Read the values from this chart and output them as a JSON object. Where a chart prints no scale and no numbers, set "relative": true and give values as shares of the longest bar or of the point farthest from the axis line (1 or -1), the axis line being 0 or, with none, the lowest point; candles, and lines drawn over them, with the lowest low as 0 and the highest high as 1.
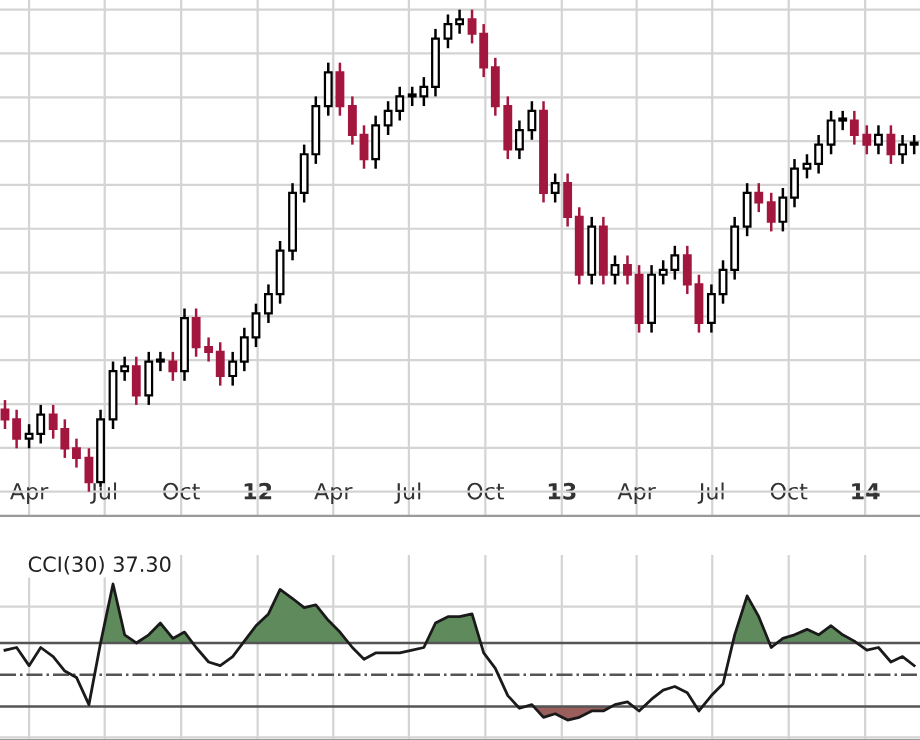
{
  "chart_data": [
    {
      "type": "candlestick",
      "relative": true,
      "tick_labels": "x",
      "grid": true,
      "x": [
        "2011-03-03",
        "2011-03-17",
        "2011-04-01",
        "2011-04-15",
        "2011-04-30",
        "2011-05-14",
        "2011-05-28",
        "2011-06-12",
        "2011-06-26",
        "2011-07-11",
        "2011-07-25",
        "2011-08-08",
        "2011-08-23",
        "2011-09-06",
        "2011-09-21",
        "2011-10-05",
        "2011-10-19",
        "2011-11-03",
        "2011-11-17",
        "2011-12-02",
        "2011-12-16",
        "2011-12-30",
        "2012-01-14",
        "2012-01-28",
        "2012-02-12",
        "2012-02-26",
        "2012-03-11",
        "2012-03-26",
        "2012-04-09",
        "2012-04-24",
        "2012-05-08",
        "2012-05-22",
        "2012-06-06",
        "2012-06-20",
        "2012-07-05",
        "2012-07-19",
        "2012-08-02",
        "2012-08-17",
        "2012-08-31",
        "2012-09-15",
        "2012-09-29",
        "2012-10-13",
        "2012-10-28",
        "2012-11-11",
        "2012-11-26",
        "2012-12-10",
        "2012-12-24",
        "2013-01-08",
        "2013-01-22",
        "2013-02-06",
        "2013-02-20",
        "2013-03-06",
        "2013-03-21",
        "2013-04-04",
        "2013-04-19",
        "2013-05-03",
        "2013-05-17",
        "2013-06-01",
        "2013-06-15",
        "2013-06-30",
        "2013-07-14",
        "2013-07-28",
        "2013-08-12",
        "2013-08-26",
        "2013-09-10",
        "2013-09-24",
        "2013-10-08",
        "2013-10-23",
        "2013-11-06",
        "2013-11-21",
        "2013-12-05",
        "2013-12-19",
        "2014-01-03",
        "2014-01-17",
        "2014-02-01",
        "2014-02-15",
        "2014-03-01"
      ],
      "ohlc": [
        [
          0.17,
          0.19,
          0.13,
          0.15
        ],
        [
          0.15,
          0.17,
          0.09,
          0.11
        ],
        [
          0.11,
          0.14,
          0.09,
          0.12
        ],
        [
          0.12,
          0.18,
          0.1,
          0.16
        ],
        [
          0.16,
          0.18,
          0.11,
          0.13
        ],
        [
          0.13,
          0.15,
          0.07,
          0.09
        ],
        [
          0.09,
          0.11,
          0.05,
          0.07
        ],
        [
          0.07,
          0.09,
          0.0,
          0.02
        ],
        [
          0.02,
          0.17,
          0.01,
          0.15
        ],
        [
          0.15,
          0.27,
          0.13,
          0.25
        ],
        [
          0.25,
          0.28,
          0.23,
          0.26
        ],
        [
          0.26,
          0.28,
          0.18,
          0.2
        ],
        [
          0.2,
          0.29,
          0.18,
          0.27
        ],
        [
          0.27,
          0.29,
          0.25,
          0.27
        ],
        [
          0.27,
          0.29,
          0.23,
          0.25
        ],
        [
          0.25,
          0.38,
          0.23,
          0.36
        ],
        [
          0.36,
          0.38,
          0.28,
          0.3
        ],
        [
          0.3,
          0.32,
          0.27,
          0.29
        ],
        [
          0.29,
          0.31,
          0.22,
          0.24
        ],
        [
          0.24,
          0.29,
          0.22,
          0.27
        ],
        [
          0.27,
          0.34,
          0.25,
          0.32
        ],
        [
          0.32,
          0.39,
          0.3,
          0.37
        ],
        [
          0.37,
          0.43,
          0.35,
          0.41
        ],
        [
          0.41,
          0.52,
          0.39,
          0.5
        ],
        [
          0.5,
          0.64,
          0.48,
          0.62
        ],
        [
          0.62,
          0.72,
          0.6,
          0.7
        ],
        [
          0.7,
          0.82,
          0.68,
          0.8
        ],
        [
          0.8,
          0.89,
          0.78,
          0.87
        ],
        [
          0.87,
          0.89,
          0.78,
          0.8
        ],
        [
          0.8,
          0.82,
          0.72,
          0.74
        ],
        [
          0.74,
          0.76,
          0.67,
          0.69
        ],
        [
          0.69,
          0.78,
          0.67,
          0.76
        ],
        [
          0.76,
          0.81,
          0.74,
          0.79
        ],
        [
          0.79,
          0.84,
          0.77,
          0.82
        ],
        [
          0.82,
          0.84,
          0.8,
          0.82
        ],
        [
          0.82,
          0.86,
          0.8,
          0.84
        ],
        [
          0.84,
          0.96,
          0.82,
          0.94
        ],
        [
          0.94,
          0.99,
          0.92,
          0.97
        ],
        [
          0.97,
          1.0,
          0.95,
          0.98
        ],
        [
          0.98,
          1.0,
          0.93,
          0.95
        ],
        [
          0.95,
          0.97,
          0.86,
          0.88
        ],
        [
          0.88,
          0.9,
          0.78,
          0.8
        ],
        [
          0.8,
          0.82,
          0.69,
          0.71
        ],
        [
          0.71,
          0.77,
          0.69,
          0.75
        ],
        [
          0.75,
          0.81,
          0.73,
          0.79
        ],
        [
          0.79,
          0.81,
          0.6,
          0.62
        ],
        [
          0.62,
          0.66,
          0.6,
          0.64
        ],
        [
          0.64,
          0.66,
          0.55,
          0.57
        ],
        [
          0.57,
          0.59,
          0.43,
          0.45
        ],
        [
          0.45,
          0.57,
          0.43,
          0.55
        ],
        [
          0.55,
          0.57,
          0.43,
          0.45
        ],
        [
          0.45,
          0.49,
          0.43,
          0.47
        ],
        [
          0.47,
          0.49,
          0.43,
          0.45
        ],
        [
          0.45,
          0.47,
          0.33,
          0.35
        ],
        [
          0.35,
          0.47,
          0.33,
          0.45
        ],
        [
          0.45,
          0.48,
          0.43,
          0.46
        ],
        [
          0.46,
          0.51,
          0.44,
          0.49
        ],
        [
          0.49,
          0.51,
          0.41,
          0.43
        ],
        [
          0.43,
          0.45,
          0.33,
          0.35
        ],
        [
          0.35,
          0.43,
          0.33,
          0.41
        ],
        [
          0.41,
          0.48,
          0.39,
          0.46
        ],
        [
          0.46,
          0.57,
          0.44,
          0.55
        ],
        [
          0.55,
          0.64,
          0.53,
          0.62
        ],
        [
          0.62,
          0.64,
          0.58,
          0.6
        ],
        [
          0.6,
          0.62,
          0.54,
          0.56
        ],
        [
          0.56,
          0.63,
          0.54,
          0.61
        ],
        [
          0.61,
          0.69,
          0.59,
          0.67
        ],
        [
          0.67,
          0.7,
          0.65,
          0.68
        ],
        [
          0.68,
          0.74,
          0.66,
          0.72
        ],
        [
          0.72,
          0.79,
          0.7,
          0.77
        ],
        [
          0.77,
          0.79,
          0.75,
          0.77
        ],
        [
          0.77,
          0.79,
          0.72,
          0.74
        ],
        [
          0.74,
          0.76,
          0.7,
          0.72
        ],
        [
          0.72,
          0.76,
          0.7,
          0.74
        ],
        [
          0.74,
          0.76,
          0.68,
          0.7
        ],
        [
          0.7,
          0.74,
          0.68,
          0.72
        ],
        [
          0.72,
          0.74,
          0.7,
          0.72
        ]
      ],
      "colors": [
        "#a3173f",
        "#a3173f",
        "#ffffff",
        "#ffffff",
        "#a3173f",
        "#a3173f",
        "#a3173f",
        "#a3173f",
        "#ffffff",
        "#ffffff",
        "#ffffff",
        "#a3173f",
        "#ffffff",
        "#ffffff",
        "#a3173f",
        "#ffffff",
        "#a3173f",
        "#a3173f",
        "#a3173f",
        "#ffffff",
        "#ffffff",
        "#ffffff",
        "#ffffff",
        "#ffffff",
        "#ffffff",
        "#ffffff",
        "#ffffff",
        "#ffffff",
        "#a3173f",
        "#a3173f",
        "#a3173f",
        "#ffffff",
        "#ffffff",
        "#ffffff",
        "#ffffff",
        "#ffffff",
        "#ffffff",
        "#ffffff",
        "#ffffff",
        "#a3173f",
        "#a3173f",
        "#a3173f",
        "#a3173f",
        "#ffffff",
        "#ffffff",
        "#a3173f",
        "#ffffff",
        "#a3173f",
        "#a3173f",
        "#ffffff",
        "#a3173f",
        "#ffffff",
        "#a3173f",
        "#a3173f",
        "#ffffff",
        "#ffffff",
        "#ffffff",
        "#a3173f",
        "#a3173f",
        "#ffffff",
        "#ffffff",
        "#ffffff",
        "#ffffff",
        "#a3173f",
        "#a3173f",
        "#ffffff",
        "#ffffff",
        "#ffffff",
        "#ffffff",
        "#ffffff",
        "#ffffff",
        "#a3173f",
        "#a3173f",
        "#ffffff",
        "#a3173f",
        "#ffffff",
        "#ffffff"
      ],
      "xlim": [
        "2011-02-25",
        "2014-03-08"
      ],
      "xticks": [
        {
          "value": "2011-04-01",
          "label": "Apr"
        },
        {
          "value": "2011-07-01",
          "label": "Jul"
        },
        {
          "value": "2011-10-01",
          "label": "Oct"
        },
        {
          "value": "2012-01-01",
          "label": "12"
        },
        {
          "value": "2012-04-01",
          "label": "Apr"
        },
        {
          "value": "2012-07-01",
          "label": "Jul"
        },
        {
          "value": "2012-10-01",
          "label": "Oct"
        },
        {
          "value": "2013-01-01",
          "label": "13"
        },
        {
          "value": "2013-04-01",
          "label": "Apr"
        },
        {
          "value": "2013-07-01",
          "label": "Jul"
        },
        {
          "value": "2013-10-01",
          "label": "Oct"
        },
        {
          "value": "2014-01-01",
          "label": "14"
        }
      ]
    },
    {
      "type": "line",
      "relative": true,
      "tick_labels": false,
      "grid": true,
      "title": "CCI(30) 37.30",
      "xlim": [
        "2011-02-25",
        "2014-03-08"
      ],
      "x": [
        "2011-03-03",
        "2011-03-17",
        "2011-04-01",
        "2011-04-15",
        "2011-04-30",
        "2011-05-14",
        "2011-05-28",
        "2011-06-12",
        "2011-06-26",
        "2011-07-11",
        "2011-07-25",
        "2011-08-08",
        "2011-08-23",
        "2011-09-06",
        "2011-09-21",
        "2011-10-05",
        "2011-10-19",
        "2011-11-03",
        "2011-11-17",
        "2011-12-02",
        "2011-12-16",
        "2011-12-30",
        "2012-01-14",
        "2012-01-28",
        "2012-02-12",
        "2012-02-26",
        "2012-03-11",
        "2012-03-26",
        "2012-04-09",
        "2012-04-24",
        "2012-05-08",
        "2012-05-22",
        "2012-06-06",
        "2012-06-20",
        "2012-07-05",
        "2012-07-19",
        "2012-08-02",
        "2012-08-17",
        "2012-08-31",
        "2012-09-15",
        "2012-09-29",
        "2012-10-13",
        "2012-10-28",
        "2012-11-11",
        "2012-11-26",
        "2012-12-10",
        "2012-12-24",
        "2013-01-08",
        "2013-01-22",
        "2013-02-06",
        "2013-02-20",
        "2013-03-06",
        "2013-03-21",
        "2013-04-04",
        "2013-04-19",
        "2013-05-03",
        "2013-05-17",
        "2013-06-01",
        "2013-06-15",
        "2013-06-30",
        "2013-07-14",
        "2013-07-28",
        "2013-08-12",
        "2013-08-26",
        "2013-09-10",
        "2013-09-24",
        "2013-10-08",
        "2013-10-23",
        "2013-11-06",
        "2013-11-21",
        "2013-12-05",
        "2013-12-19",
        "2014-01-03",
        "2014-01-17",
        "2014-02-01",
        "2014-02-15",
        "2014-03-01"
      ],
      "series": [
        {
          "color": "#1a1a1a",
          "values": [
            0.27,
            0.3,
            0.1,
            0.3,
            0.2,
            0.04,
            -0.03,
            -0.33,
            0.35,
            1.0,
            0.44,
            0.35,
            0.44,
            0.57,
            0.4,
            0.47,
            0.3,
            0.14,
            0.1,
            0.2,
            0.37,
            0.54,
            0.67,
            0.94,
            0.84,
            0.74,
            0.77,
            0.6,
            0.47,
            0.3,
            0.17,
            0.24,
            0.24,
            0.24,
            0.27,
            0.3,
            0.57,
            0.64,
            0.64,
            0.67,
            0.24,
            0.07,
            -0.23,
            -0.37,
            -0.33,
            -0.47,
            -0.43,
            -0.5,
            -0.47,
            -0.4,
            -0.4,
            -0.33,
            -0.3,
            -0.4,
            -0.27,
            -0.17,
            -0.13,
            -0.2,
            -0.4,
            -0.23,
            -0.1,
            0.44,
            0.87,
            0.64,
            0.3,
            0.4,
            0.44,
            0.5,
            0.44,
            0.54,
            0.44,
            0.37,
            0.27,
            0.3,
            0.14,
            0.2,
            0.1
          ]
        },
        {
          "type": "area",
          "color": "#5e8a5c",
          "x": [
            "2011-06-26",
            "2011-07-11",
            "2011-07-25",
            "2011-08-08",
            "2011-08-23",
            "2011-09-06",
            "2011-09-21",
            "2011-10-05",
            "2011-10-15",
            "2011-11-15",
            "2011-12-14",
            "2011-12-16",
            "2011-12-30",
            "2012-01-14",
            "2012-01-28",
            "2012-02-12",
            "2012-02-26",
            "2012-03-11",
            "2012-03-26",
            "2012-04-09",
            "2012-04-19",
            "2012-06-01",
            "2012-07-22",
            "2012-08-02",
            "2012-08-17",
            "2012-08-31",
            "2012-09-15",
            "2012-09-25",
            "2013-03-01",
            "2013-07-26",
            "2013-07-28",
            "2013-08-12",
            "2013-08-26",
            "2013-09-08",
            "2013-09-12",
            "2013-09-17",
            "2013-09-24",
            "2013-10-08",
            "2013-10-23",
            "2013-11-06",
            "2013-11-21",
            "2013-12-05",
            "2013-12-19",
            "2013-12-22"
          ],
          "values": [
            0.35,
            1.0,
            0.44,
            0.35,
            0.44,
            0.57,
            0.4,
            0.47,
            0.35,
            null,
            0.35,
            0.37,
            0.54,
            0.67,
            0.94,
            0.84,
            0.74,
            0.77,
            0.6,
            0.47,
            0.35,
            null,
            0.35,
            0.57,
            0.64,
            0.64,
            0.67,
            0.35,
            null,
            0.35,
            0.44,
            0.87,
            0.64,
            0.35,
            null,
            0.35,
            0.4,
            0.44,
            0.5,
            0.44,
            0.54,
            0.44,
            0.37,
            0.35
          ]
        },
        {
          "type": "area",
          "color": "#9a5e5c",
          "x": [
            "2012-11-28",
            "2012-12-10",
            "2012-12-24",
            "2013-01-08",
            "2013-01-22",
            "2013-02-06",
            "2013-02-20",
            "2013-03-02"
          ],
          "values": [
            -0.35,
            -0.47,
            -0.43,
            -0.5,
            -0.47,
            -0.4,
            -0.4,
            -0.35
          ]
        }
      ],
      "ref_lines": [
        {
          "axis": "y",
          "value": 0.35,
          "color": "#555555"
        },
        {
          "axis": "y",
          "value": 0,
          "color": "#555555",
          "line_style": "dashed"
        },
        {
          "axis": "y",
          "value": -0.35,
          "color": "#555555"
        }
      ]
    }
  ]
}
